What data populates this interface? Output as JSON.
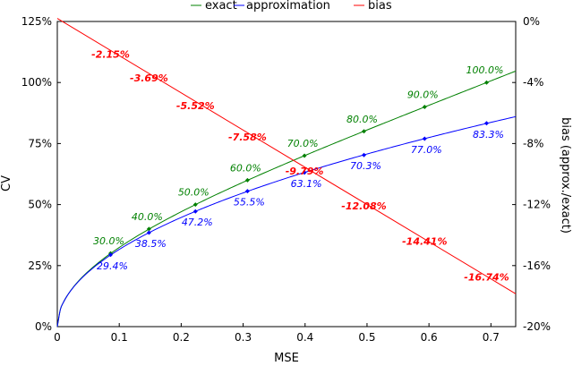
{
  "chart_data": {
    "type": "line",
    "xlabel": "MSE",
    "ylabel_left": "CV",
    "ylabel_right": "bias (approx./exact)",
    "xlim": [
      0,
      0.74
    ],
    "ylim_left": [
      0,
      1.25
    ],
    "ylim_right": [
      -0.2,
      0.0
    ],
    "x_ticks": [
      {
        "v": 0,
        "label": "0"
      },
      {
        "v": 0.1,
        "label": "0.1"
      },
      {
        "v": 0.2,
        "label": "0.2"
      },
      {
        "v": 0.3,
        "label": "0.3"
      },
      {
        "v": 0.4,
        "label": "0.4"
      },
      {
        "v": 0.5,
        "label": "0.5"
      },
      {
        "v": 0.6,
        "label": "0.6"
      },
      {
        "v": 0.7,
        "label": "0.7"
      }
    ],
    "y_ticks_left": [
      {
        "v": 0,
        "label": "0%"
      },
      {
        "v": 0.25,
        "label": "25%"
      },
      {
        "v": 0.5,
        "label": "50%"
      },
      {
        "v": 0.75,
        "label": "75%"
      },
      {
        "v": 1.0,
        "label": "100%"
      },
      {
        "v": 1.25,
        "label": "125%"
      }
    ],
    "y_ticks_right": [
      {
        "v": 0,
        "label": "0%"
      },
      {
        "v": -0.04,
        "label": "-4%"
      },
      {
        "v": -0.08,
        "label": "-8%"
      },
      {
        "v": -0.12,
        "label": "-12%"
      },
      {
        "v": -0.16,
        "label": "-16%"
      },
      {
        "v": -0.2,
        "label": "-20%"
      }
    ],
    "legend": {
      "position": "top-center",
      "entries": [
        "exact",
        "approximation",
        "bias"
      ]
    },
    "series": [
      {
        "name": "exact",
        "color": "#008000",
        "axis": "left",
        "points": [
          {
            "x": 0.086,
            "y": 0.3,
            "label": "30.0%"
          },
          {
            "x": 0.148,
            "y": 0.4,
            "label": "40.0%"
          },
          {
            "x": 0.223,
            "y": 0.5,
            "label": "50.0%"
          },
          {
            "x": 0.307,
            "y": 0.6,
            "label": "60.0%"
          },
          {
            "x": 0.399,
            "y": 0.7,
            "label": "70.0%"
          },
          {
            "x": 0.495,
            "y": 0.8,
            "label": "80.0%"
          },
          {
            "x": 0.593,
            "y": 0.9,
            "label": "90.0%"
          },
          {
            "x": 0.693,
            "y": 1.0,
            "label": "100.0%"
          }
        ]
      },
      {
        "name": "approximation",
        "color": "#0000ff",
        "axis": "left",
        "points": [
          {
            "x": 0.086,
            "y": 0.294,
            "label": "29.4%"
          },
          {
            "x": 0.148,
            "y": 0.385,
            "label": "38.5%"
          },
          {
            "x": 0.223,
            "y": 0.472,
            "label": "47.2%"
          },
          {
            "x": 0.307,
            "y": 0.555,
            "label": "55.5%"
          },
          {
            "x": 0.399,
            "y": 0.631,
            "label": "63.1%"
          },
          {
            "x": 0.495,
            "y": 0.703,
            "label": "70.3%"
          },
          {
            "x": 0.593,
            "y": 0.77,
            "label": "77.0%"
          },
          {
            "x": 0.693,
            "y": 0.833,
            "label": "83.3%"
          }
        ]
      },
      {
        "name": "bias",
        "color": "#ff0000",
        "axis": "right",
        "points": [
          {
            "x": 0.086,
            "y": -0.0215,
            "label": "-2.15%"
          },
          {
            "x": 0.148,
            "y": -0.0369,
            "label": "-3.69%"
          },
          {
            "x": 0.223,
            "y": -0.0552,
            "label": "-5.52%"
          },
          {
            "x": 0.307,
            "y": -0.0758,
            "label": "-7.58%"
          },
          {
            "x": 0.399,
            "y": -0.0979,
            "label": "-9.79%"
          },
          {
            "x": 0.495,
            "y": -0.1208,
            "label": "-12.08%"
          },
          {
            "x": 0.593,
            "y": -0.1441,
            "label": "-14.41%"
          },
          {
            "x": 0.693,
            "y": -0.1674,
            "label": "-16.74%"
          }
        ]
      }
    ]
  }
}
